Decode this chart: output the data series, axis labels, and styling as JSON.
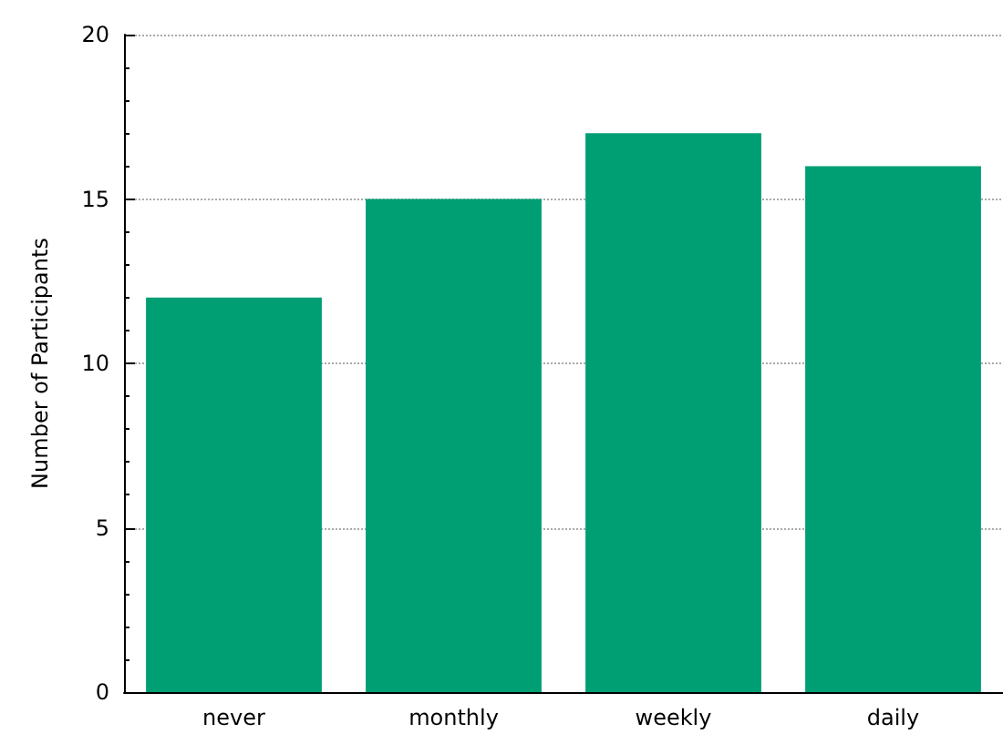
{
  "chart_data": {
    "type": "bar",
    "ylabel": "Number of Participants",
    "categories": [
      "never",
      "monthly",
      "weekly",
      "daily"
    ],
    "values": [
      12,
      15,
      17,
      16
    ],
    "color": "#009e73",
    "ylim": [
      0,
      20
    ],
    "yticks": [
      0,
      5,
      10,
      15,
      20
    ],
    "grid": "y"
  }
}
